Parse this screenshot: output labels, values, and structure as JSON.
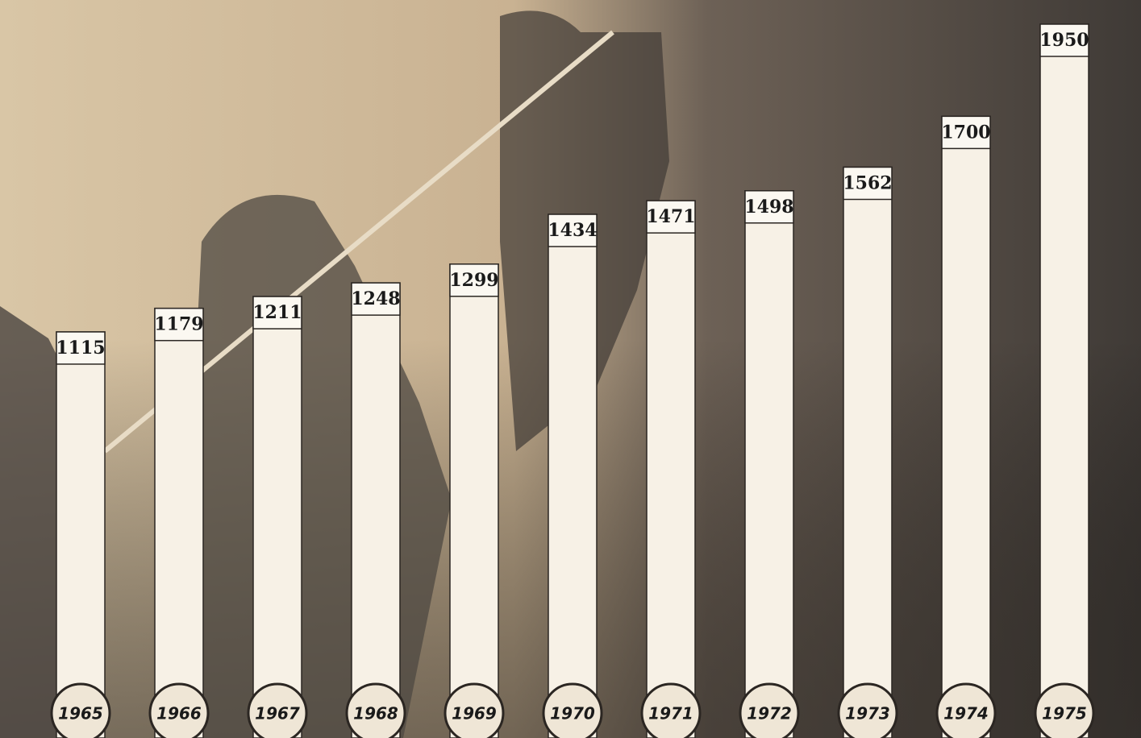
{
  "chart_data": {
    "type": "bar",
    "categories": [
      "1965",
      "1966",
      "1967",
      "1968",
      "1969",
      "1970",
      "1971",
      "1972",
      "1973",
      "1974",
      "1975"
    ],
    "values": [
      1115,
      1179,
      1211,
      1248,
      1299,
      1434,
      1471,
      1498,
      1562,
      1700,
      1950
    ],
    "color": "#f7f1e6"
  }
}
